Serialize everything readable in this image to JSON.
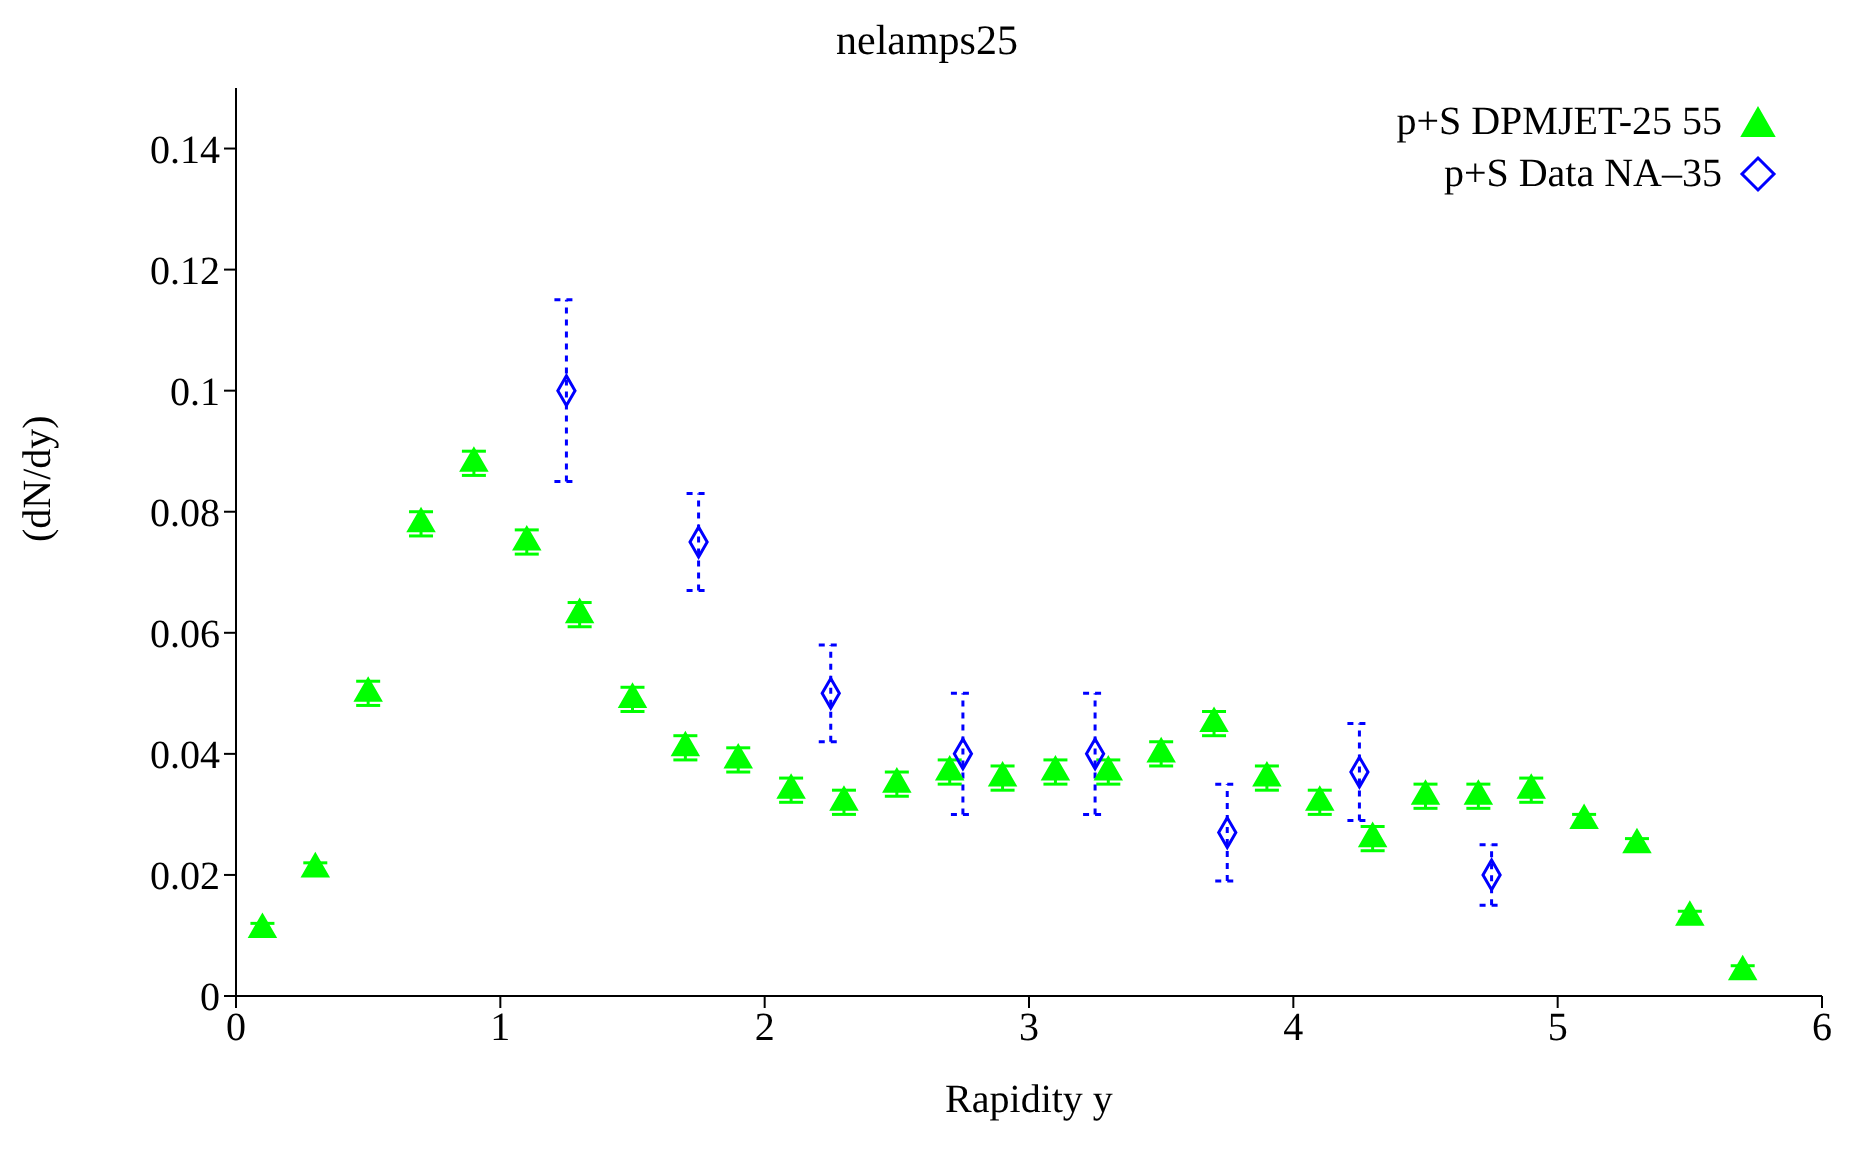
{
  "chart_data": {
    "type": "scatter",
    "title": "nelamps25",
    "xlabel": "Rapidity y",
    "ylabel": "(dN/dy)",
    "xlim": [
      0,
      6
    ],
    "xticks": [
      0,
      1,
      2,
      3,
      4,
      5,
      6
    ],
    "ylim": [
      0,
      0.15
    ],
    "yticks": [
      0,
      0.02,
      0.04,
      0.06,
      0.08,
      0.1,
      0.12,
      0.14
    ],
    "legend": "top right",
    "grid": false,
    "series": [
      {
        "name": "p+S DPMJET-25 55",
        "color": "#00ff00",
        "marker": "triangle",
        "x": [
          0.1,
          0.3,
          0.5,
          0.7,
          0.9,
          1.1,
          1.3,
          1.5,
          1.7,
          1.9,
          2.1,
          2.3,
          2.5,
          2.7,
          2.9,
          3.1,
          3.3,
          3.5,
          3.7,
          3.9,
          4.1,
          4.3,
          4.5,
          4.7,
          4.9,
          5.1,
          5.3,
          5.5,
          5.7
        ],
        "values": [
          0.011,
          0.021,
          0.05,
          0.078,
          0.088,
          0.075,
          0.063,
          0.049,
          0.041,
          0.039,
          0.034,
          0.032,
          0.035,
          0.037,
          0.036,
          0.037,
          0.037,
          0.04,
          0.045,
          0.036,
          0.032,
          0.026,
          0.033,
          0.033,
          0.034,
          0.029,
          0.025,
          0.013,
          0.004
        ],
        "errors": [
          0.001,
          0.001,
          0.002,
          0.002,
          0.002,
          0.002,
          0.002,
          0.002,
          0.002,
          0.002,
          0.002,
          0.002,
          0.002,
          0.002,
          0.002,
          0.002,
          0.002,
          0.002,
          0.002,
          0.002,
          0.002,
          0.002,
          0.002,
          0.002,
          0.002,
          0.001,
          0.001,
          0.001,
          0.001
        ]
      },
      {
        "name": "p+S Data NA–35",
        "color": "#0000ff",
        "marker": "diamond",
        "x": [
          1.25,
          1.75,
          2.25,
          2.75,
          3.25,
          3.75,
          4.25,
          4.75
        ],
        "values": [
          0.1,
          0.075,
          0.05,
          0.04,
          0.04,
          0.027,
          0.037,
          0.02
        ],
        "errors": [
          0.015,
          0.008,
          0.008,
          0.01,
          0.01,
          0.008,
          0.008,
          0.005
        ]
      }
    ]
  }
}
